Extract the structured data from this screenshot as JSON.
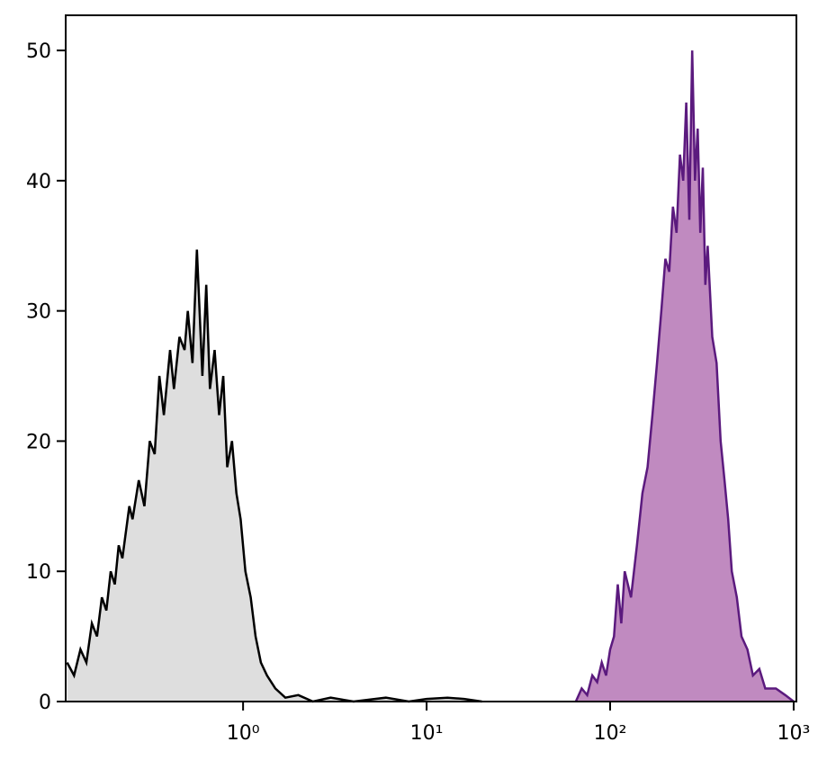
{
  "chart_data": {
    "type": "area",
    "xscale": "log",
    "xlim": [
      0.108,
      1035
    ],
    "xticks": [
      {
        "value": 1,
        "label": "10⁰"
      },
      {
        "value": 10,
        "label": "10¹"
      },
      {
        "value": 100,
        "label": "10²"
      },
      {
        "value": 1000,
        "label": "10³"
      }
    ],
    "ylim": [
      0,
      52.7
    ],
    "yticks": [
      0,
      10,
      20,
      30,
      40,
      50
    ],
    "series": [
      {
        "color": "#000000",
        "fill": "#dedede",
        "x": [
          0.11,
          0.12,
          0.13,
          0.14,
          0.15,
          0.16,
          0.17,
          0.18,
          0.19,
          0.2,
          0.21,
          0.22,
          0.24,
          0.25,
          0.27,
          0.29,
          0.31,
          0.33,
          0.35,
          0.37,
          0.4,
          0.42,
          0.45,
          0.48,
          0.5,
          0.53,
          0.56,
          0.6,
          0.63,
          0.66,
          0.7,
          0.74,
          0.78,
          0.82,
          0.87,
          0.92,
          0.97,
          1.03,
          1.1,
          1.17,
          1.25,
          1.35,
          1.5,
          1.7,
          2,
          2.4,
          3,
          4,
          6,
          8,
          10,
          13,
          16,
          20
        ],
        "values": [
          3,
          2,
          4,
          3,
          6,
          5,
          8,
          7,
          10,
          9,
          12,
          11,
          15,
          14,
          17,
          15,
          20,
          19,
          25,
          22,
          27,
          24,
          28,
          27,
          30,
          26,
          34.7,
          25,
          32,
          24,
          27,
          22,
          25,
          18,
          20,
          16,
          14,
          10,
          8,
          5,
          3,
          2,
          1,
          0.3,
          0.5,
          0,
          0.3,
          0,
          0.3,
          0,
          0.2,
          0.3,
          0.2,
          0
        ]
      },
      {
        "color": "#5b1a7e",
        "fill": "#c08ac0",
        "x": [
          65,
          70,
          75,
          80,
          85,
          90,
          95,
          100,
          105,
          110,
          115,
          120,
          130,
          140,
          150,
          160,
          170,
          180,
          190,
          200,
          210,
          220,
          230,
          240,
          250,
          260,
          270,
          280,
          290,
          300,
          310,
          320,
          330,
          340,
          360,
          380,
          400,
          420,
          440,
          460,
          490,
          520,
          560,
          600,
          650,
          700,
          800,
          900,
          1000
        ],
        "values": [
          0,
          1,
          0.5,
          2,
          1.5,
          3,
          2,
          4,
          5,
          9,
          6,
          10,
          8,
          12,
          16,
          18,
          22,
          26,
          30,
          34,
          33,
          38,
          36,
          42,
          40,
          46,
          37,
          50,
          40,
          44,
          36,
          41,
          32,
          35,
          28,
          26,
          20,
          17,
          14,
          10,
          8,
          5,
          4,
          2,
          2.5,
          1,
          1,
          0.5,
          0
        ]
      }
    ]
  }
}
